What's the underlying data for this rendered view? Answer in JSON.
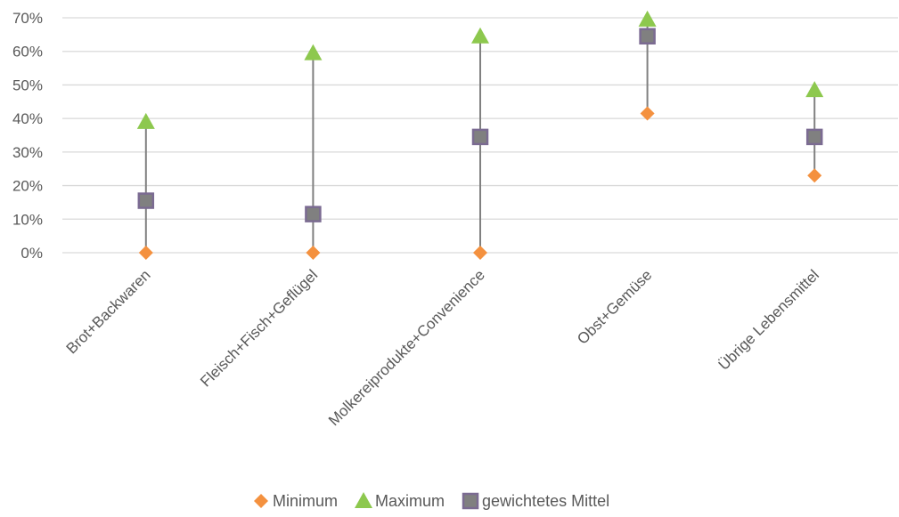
{
  "chart_data": {
    "type": "scatter",
    "categories": [
      "Brot+Backwaren",
      "Fleisch+Fisch+Geflügel",
      "Molkereiprodukte+Convenience",
      "Obst+Gemüse",
      "Übrige Lebensmittel"
    ],
    "series": [
      {
        "name": "Minimum",
        "values": [
          0,
          0,
          0,
          41.5,
          23
        ],
        "color": "#f4913f",
        "marker": "diamond"
      },
      {
        "name": "Maximum",
        "values": [
          39,
          59.5,
          64.5,
          69.5,
          48.5
        ],
        "color": "#8dc84e",
        "marker": "triangle"
      },
      {
        "name": "gewichtetes Mittel",
        "values": [
          15.5,
          11.5,
          34.5,
          64.5,
          34.5
        ],
        "color": "#7b6b92",
        "marker": "square"
      }
    ],
    "range_lines": {
      "from": "Minimum",
      "to": "Maximum",
      "color": "#808080"
    },
    "ylim": [
      0,
      70
    ],
    "yticks": [
      "0%",
      "10%",
      "20%",
      "30%",
      "40%",
      "50%",
      "60%",
      "70%"
    ],
    "grid": true,
    "legend_position": "bottom"
  }
}
